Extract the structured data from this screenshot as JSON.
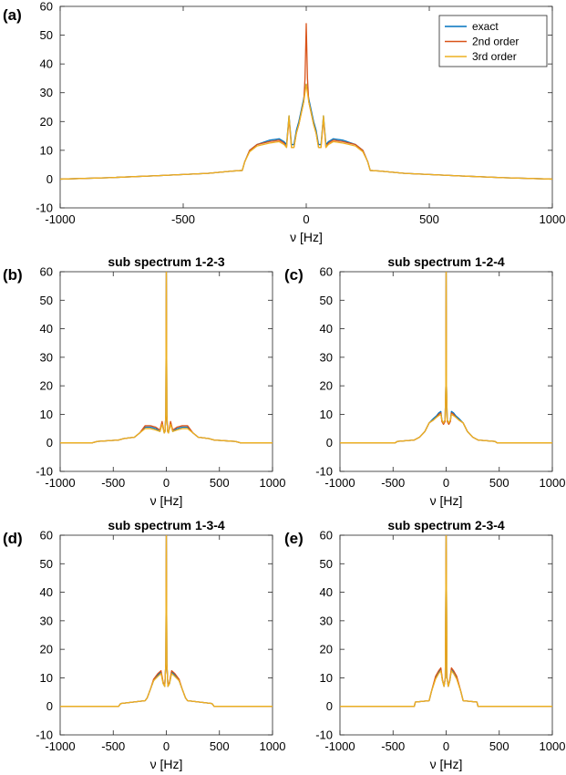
{
  "chart_data": [
    {
      "type": "line",
      "label": "(a)",
      "title": "",
      "xlabel": "ν [Hz]",
      "ylabel": "",
      "xlim": [
        -1000,
        1000
      ],
      "ylim": [
        -10,
        60
      ],
      "xticks": [
        "-1000",
        "-500",
        "0",
        "500",
        "1000"
      ],
      "yticks": [
        "-10",
        "0",
        "10",
        "20",
        "30",
        "40",
        "50",
        "60"
      ],
      "legend": {
        "position": "top-right",
        "entries": [
          "exact",
          "2nd order",
          "3rd order"
        ]
      },
      "series": [
        {
          "name": "exact",
          "color": "#0072BD",
          "x": [
            -1000,
            -800,
            -600,
            -400,
            -300,
            -260,
            -250,
            -230,
            -200,
            -150,
            -110,
            -90,
            -80,
            -70,
            -60,
            -50,
            -40,
            -30,
            -20,
            -10,
            -5,
            0,
            5,
            10,
            20,
            30,
            40,
            50,
            60,
            70,
            80,
            90,
            110,
            150,
            200,
            230,
            250,
            260,
            300,
            400,
            600,
            800,
            1000
          ],
          "y": [
            0,
            0.5,
            1.2,
            2,
            2.8,
            3,
            6,
            10,
            12,
            13.5,
            14,
            13,
            12,
            22,
            12,
            12,
            17,
            20,
            24,
            28,
            31,
            33,
            31,
            28,
            24,
            20,
            17,
            12,
            12,
            22,
            12,
            13,
            14,
            13.5,
            12,
            10,
            6,
            3,
            2.8,
            2,
            1.2,
            0.5,
            0
          ]
        },
        {
          "name": "2nd order",
          "color": "#D95319",
          "x": [
            -1000,
            -800,
            -600,
            -400,
            -300,
            -260,
            -250,
            -230,
            -200,
            -150,
            -110,
            -90,
            -80,
            -70,
            -60,
            -50,
            -40,
            -30,
            -20,
            -10,
            -5,
            0,
            5,
            10,
            20,
            30,
            40,
            50,
            60,
            70,
            80,
            90,
            110,
            150,
            200,
            230,
            250,
            260,
            300,
            400,
            600,
            800,
            1000
          ],
          "y": [
            0,
            0.5,
            1.2,
            2,
            2.8,
            3,
            6,
            10,
            12,
            13,
            13.5,
            12.5,
            11,
            21,
            11,
            11,
            16,
            19,
            23,
            27,
            35,
            54,
            35,
            27,
            23,
            19,
            16,
            11,
            11,
            21,
            11,
            12.5,
            13.5,
            13,
            12,
            10,
            6,
            3,
            2.8,
            2,
            1.2,
            0.5,
            0
          ]
        },
        {
          "name": "3rd order",
          "color": "#EDB120",
          "x": [
            -1000,
            -800,
            -600,
            -400,
            -300,
            -260,
            -250,
            -230,
            -200,
            -150,
            -110,
            -90,
            -80,
            -70,
            -60,
            -50,
            -40,
            -30,
            -20,
            -10,
            -5,
            0,
            5,
            10,
            20,
            30,
            40,
            50,
            60,
            70,
            80,
            90,
            110,
            150,
            200,
            230,
            250,
            260,
            300,
            400,
            600,
            800,
            1000
          ],
          "y": [
            0,
            0.5,
            1.2,
            2,
            2.8,
            3,
            6,
            9.5,
            11.5,
            12.5,
            13,
            12,
            11,
            22,
            11,
            11,
            16,
            19,
            23,
            27,
            30,
            33,
            30,
            27,
            23,
            19,
            16,
            11,
            11,
            22,
            11,
            12,
            13,
            12.5,
            11.5,
            9.5,
            6,
            3,
            2.8,
            2,
            1.2,
            0.5,
            0
          ]
        }
      ]
    },
    {
      "type": "line",
      "label": "(b)",
      "title": "sub spectrum 1-2-3",
      "xlabel": "ν [Hz]",
      "ylabel": "",
      "xlim": [
        -1000,
        1000
      ],
      "ylim": [
        -10,
        60
      ],
      "xticks": [
        "-1000",
        "-500",
        "0",
        "500",
        "1000"
      ],
      "yticks": [
        "-10",
        "0",
        "10",
        "20",
        "30",
        "40",
        "50",
        "60"
      ],
      "series": [
        {
          "color": "#0072BD",
          "x": [
            -1000,
            -700,
            -650,
            -450,
            -400,
            -300,
            -250,
            -200,
            -150,
            -100,
            -60,
            -40,
            -20,
            -12,
            -5,
            -2,
            0,
            2,
            5,
            12,
            20,
            40,
            60,
            100,
            150,
            200,
            250,
            300,
            400,
            450,
            650,
            700,
            1000
          ],
          "y": [
            0,
            0,
            0.5,
            1,
            1.5,
            2,
            3.5,
            5.5,
            5.5,
            5,
            4,
            7,
            3.5,
            4,
            10,
            40,
            60,
            40,
            10,
            4,
            3.5,
            7,
            4,
            5,
            5.5,
            5.5,
            3.5,
            2,
            1.5,
            1,
            0.5,
            0,
            0
          ]
        },
        {
          "color": "#D95319",
          "x": [
            -1000,
            -700,
            -650,
            -450,
            -400,
            -300,
            -250,
            -200,
            -150,
            -100,
            -60,
            -40,
            -20,
            -12,
            -5,
            -2,
            0,
            2,
            5,
            12,
            20,
            40,
            60,
            100,
            150,
            200,
            250,
            300,
            400,
            450,
            650,
            700,
            1000
          ],
          "y": [
            0,
            0,
            0.5,
            1,
            1.5,
            2,
            3.5,
            6,
            6,
            5.5,
            4.5,
            7.5,
            3.5,
            4,
            10,
            40,
            60,
            40,
            10,
            4,
            3.5,
            7.5,
            4.5,
            5.5,
            6,
            6,
            3.5,
            2,
            1.5,
            1,
            0.5,
            0,
            0
          ]
        },
        {
          "color": "#EDB120",
          "x": [
            -1000,
            -700,
            -650,
            -450,
            -400,
            -300,
            -250,
            -200,
            -150,
            -100,
            -60,
            -40,
            -20,
            -12,
            -5,
            -2,
            0,
            2,
            5,
            12,
            20,
            40,
            60,
            100,
            150,
            200,
            250,
            300,
            400,
            450,
            650,
            700,
            1000
          ],
          "y": [
            0,
            0,
            0.5,
            1,
            1.5,
            2,
            3.5,
            5,
            5,
            4.5,
            4,
            6.5,
            3.5,
            4,
            10,
            40,
            60,
            40,
            10,
            4,
            3.5,
            6.5,
            4,
            4.5,
            5,
            5,
            3.5,
            2,
            1.5,
            1,
            0.5,
            0,
            0
          ]
        }
      ]
    },
    {
      "type": "line",
      "label": "(c)",
      "title": "sub spectrum 1-2-4",
      "xlabel": "ν [Hz]",
      "ylabel": "",
      "xlim": [
        -1000,
        1000
      ],
      "ylim": [
        -10,
        60
      ],
      "xticks": [
        "-1000",
        "-500",
        "0",
        "500",
        "1000"
      ],
      "yticks": [
        "-10",
        "0",
        "10",
        "20",
        "30",
        "40",
        "50",
        "60"
      ],
      "series": [
        {
          "color": "#0072BD",
          "x": [
            -1000,
            -480,
            -460,
            -300,
            -250,
            -200,
            -160,
            -120,
            -90,
            -70,
            -50,
            -40,
            -25,
            -10,
            -3,
            0,
            3,
            10,
            25,
            40,
            50,
            70,
            90,
            120,
            160,
            200,
            250,
            300,
            460,
            480,
            1000
          ],
          "y": [
            0,
            0,
            0.5,
            1,
            2,
            4,
            7,
            8.5,
            9.5,
            10.5,
            11,
            8,
            7,
            8,
            20,
            60,
            20,
            8,
            7,
            8,
            11,
            10.5,
            9.5,
            8.5,
            7,
            4,
            2,
            1,
            0.5,
            0,
            0
          ]
        },
        {
          "color": "#D95319",
          "x": [
            -1000,
            -480,
            -460,
            -300,
            -250,
            -200,
            -160,
            -120,
            -90,
            -70,
            -50,
            -40,
            -25,
            -10,
            -3,
            0,
            3,
            10,
            25,
            40,
            50,
            70,
            90,
            120,
            160,
            200,
            250,
            300,
            460,
            480,
            1000
          ],
          "y": [
            0,
            0,
            0.5,
            1,
            2,
            4,
            7,
            8,
            9,
            10,
            10.5,
            7.5,
            6.5,
            7.5,
            20,
            60,
            20,
            7.5,
            6.5,
            7.5,
            10.5,
            10,
            9,
            8,
            7,
            4,
            2,
            1,
            0.5,
            0,
            0
          ]
        },
        {
          "color": "#EDB120",
          "x": [
            -1000,
            -480,
            -460,
            -300,
            -250,
            -200,
            -160,
            -120,
            -90,
            -70,
            -50,
            -40,
            -25,
            -10,
            -3,
            0,
            3,
            10,
            25,
            40,
            50,
            70,
            90,
            120,
            160,
            200,
            250,
            300,
            460,
            480,
            1000
          ],
          "y": [
            0,
            0,
            0.5,
            1,
            2,
            4,
            7,
            8,
            9,
            9.5,
            10,
            8,
            7,
            8,
            20,
            60,
            20,
            8,
            7,
            8,
            10,
            9.5,
            9,
            8,
            7,
            4,
            2,
            1,
            0.5,
            0,
            0
          ]
        }
      ]
    },
    {
      "type": "line",
      "label": "(d)",
      "title": "sub spectrum 1-3-4",
      "xlabel": "ν [Hz]",
      "ylabel": "",
      "xlim": [
        -1000,
        1000
      ],
      "ylim": [
        -10,
        60
      ],
      "xticks": [
        "-1000",
        "-500",
        "0",
        "500",
        "1000"
      ],
      "yticks": [
        "-10",
        "0",
        "10",
        "20",
        "30",
        "40",
        "50",
        "60"
      ],
      "series": [
        {
          "color": "#0072BD",
          "x": [
            -1000,
            -450,
            -430,
            -200,
            -180,
            -150,
            -120,
            -80,
            -50,
            -30,
            -15,
            -5,
            0,
            5,
            15,
            30,
            50,
            80,
            120,
            150,
            180,
            200,
            430,
            450,
            1000
          ],
          "y": [
            0,
            0,
            1,
            2,
            3,
            6,
            9,
            11,
            12,
            8,
            7,
            15,
            60,
            15,
            7,
            8,
            12,
            11,
            9,
            6,
            3,
            2,
            1,
            0,
            0
          ]
        },
        {
          "color": "#D95319",
          "x": [
            -1000,
            -450,
            -430,
            -200,
            -180,
            -150,
            -120,
            -80,
            -50,
            -30,
            -15,
            -5,
            0,
            5,
            15,
            30,
            50,
            80,
            120,
            150,
            180,
            200,
            430,
            450,
            1000
          ],
          "y": [
            0,
            0,
            1,
            2,
            3,
            6,
            9.5,
            11.5,
            12.5,
            8.5,
            7,
            15,
            60,
            15,
            7,
            8.5,
            12.5,
            11.5,
            9.5,
            6,
            3,
            2,
            1,
            0,
            0
          ]
        },
        {
          "color": "#EDB120",
          "x": [
            -1000,
            -450,
            -430,
            -200,
            -180,
            -150,
            -120,
            -80,
            -50,
            -30,
            -15,
            -5,
            0,
            5,
            15,
            30,
            50,
            80,
            120,
            150,
            180,
            200,
            430,
            450,
            1000
          ],
          "y": [
            0,
            0,
            1,
            2,
            3,
            6,
            9,
            10.5,
            11.5,
            8,
            7,
            15,
            60,
            15,
            7,
            8,
            11.5,
            10.5,
            9,
            6,
            3,
            2,
            1,
            0,
            0
          ]
        }
      ]
    },
    {
      "type": "line",
      "label": "(e)",
      "title": "sub spectrum 2-3-4",
      "xlabel": "ν [Hz]",
      "ylabel": "",
      "xlim": [
        -1000,
        1000
      ],
      "ylim": [
        -10,
        60
      ],
      "xticks": [
        "-1000",
        "-500",
        "0",
        "500",
        "1000"
      ],
      "yticks": [
        "-10",
        "0",
        "10",
        "20",
        "30",
        "40",
        "50",
        "60"
      ],
      "series": [
        {
          "color": "#0072BD",
          "x": [
            -1000,
            -300,
            -290,
            -160,
            -140,
            -100,
            -70,
            -50,
            -35,
            -20,
            -8,
            0,
            8,
            20,
            35,
            50,
            70,
            100,
            140,
            160,
            290,
            300,
            1000
          ],
          "y": [
            0,
            0,
            1.5,
            2,
            5,
            10,
            12,
            13,
            9,
            7,
            10,
            60,
            10,
            7,
            9,
            13,
            12,
            10,
            5,
            2,
            1.5,
            0,
            0
          ]
        },
        {
          "color": "#D95319",
          "x": [
            -1000,
            -300,
            -290,
            -160,
            -140,
            -100,
            -70,
            -50,
            -35,
            -20,
            -8,
            0,
            8,
            20,
            35,
            50,
            70,
            100,
            140,
            160,
            290,
            300,
            1000
          ],
          "y": [
            0,
            0,
            1.5,
            2,
            5,
            10.5,
            12.5,
            13.5,
            9.5,
            7,
            10,
            60,
            10,
            7,
            9.5,
            13.5,
            12.5,
            10.5,
            5,
            2,
            1.5,
            0,
            0
          ]
        },
        {
          "color": "#EDB120",
          "x": [
            -1000,
            -300,
            -290,
            -160,
            -140,
            -100,
            -70,
            -50,
            -35,
            -20,
            -8,
            0,
            8,
            20,
            35,
            50,
            70,
            100,
            140,
            160,
            290,
            300,
            1000
          ],
          "y": [
            0,
            0,
            1.5,
            2,
            5,
            9.5,
            11.5,
            12.5,
            9,
            7,
            10,
            60,
            10,
            7,
            9,
            12.5,
            11.5,
            9.5,
            5,
            2,
            1.5,
            0,
            0
          ]
        }
      ]
    }
  ]
}
